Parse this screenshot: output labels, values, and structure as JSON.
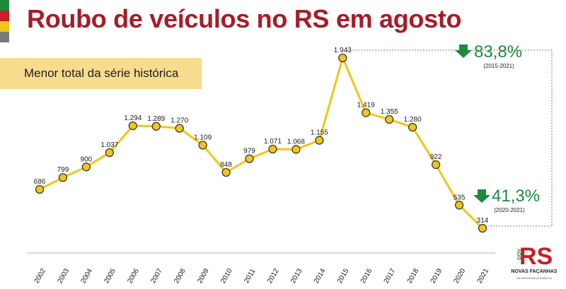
{
  "title": "Roubo de veículos no RS em agosto",
  "banner": "Menor total da série histórica",
  "colors": {
    "title": "#a51d27",
    "line": "#f2c518",
    "marker_fill": "#f2c518",
    "marker_stroke": "#3a3a3a",
    "down_arrow": "#1e8a3c",
    "banner_bg": "#f8dc8e",
    "flag": [
      "#1e8a3c",
      "#c61f24",
      "#f2c518",
      "#7a7a7a"
    ]
  },
  "annotations": [
    {
      "percent": "83,8%",
      "period": "(2015-2021)",
      "icon": "down-arrow-icon"
    },
    {
      "percent": "41,3%",
      "period": "(2020-2021)",
      "icon": "down-arrow-icon"
    }
  ],
  "logo": {
    "brand": "RS",
    "side_text": "GOV",
    "name": "NOVAS FAÇANHAS",
    "tagline": "NA SEGURANÇA PÚBLICA"
  },
  "chart_data": {
    "type": "line",
    "x": [
      "2002",
      "2003",
      "2004",
      "2005",
      "2006",
      "2007",
      "2008",
      "2009",
      "2010",
      "2011",
      "2012",
      "2013",
      "2014",
      "2015",
      "2016",
      "2017",
      "2018",
      "2019",
      "2020",
      "2021"
    ],
    "values": [
      686,
      799,
      900,
      1037,
      1294,
      1289,
      1270,
      1109,
      848,
      979,
      1071,
      1068,
      1155,
      1943,
      1419,
      1355,
      1280,
      922,
      535,
      314
    ],
    "labels": [
      "686",
      "799",
      "900",
      "1.037",
      "1.294",
      "1.289",
      "1.270",
      "1.109",
      "848",
      "979",
      "1.071",
      "1.068",
      "1.155",
      "1.943",
      "1.419",
      "1.355",
      "1.280",
      "922",
      "535",
      "314"
    ],
    "title": "Roubo de veículos no RS em agosto",
    "xlabel": "",
    "ylabel": "",
    "grid": false,
    "legend": "none"
  }
}
